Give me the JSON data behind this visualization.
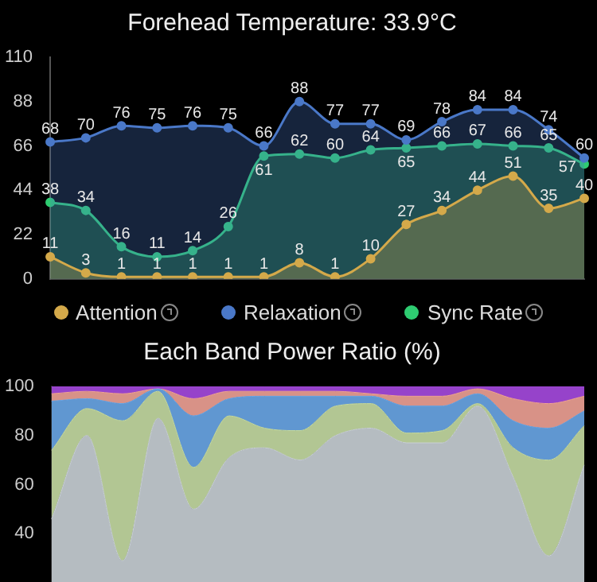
{
  "chart_data": [
    {
      "type": "area",
      "title": "Forehead Temperature: 33.9°C",
      "categories": [
        null,
        null,
        null,
        null,
        null,
        null,
        null,
        null,
        null,
        null,
        null,
        null,
        null,
        null,
        null,
        null
      ],
      "series": [
        {
          "name": "Attention",
          "color": "#d4a94a",
          "values": [
            11,
            3,
            1,
            1,
            1,
            1,
            1,
            8,
            1,
            10,
            27,
            34,
            44,
            51,
            35,
            40
          ]
        },
        {
          "name": "Relaxation",
          "color": "#4a78c8",
          "values": [
            68,
            70,
            76,
            75,
            76,
            75,
            66,
            88,
            77,
            77,
            69,
            78,
            84,
            84,
            74,
            60
          ]
        },
        {
          "name": "Sync Rate",
          "color": "#2ecc71",
          "values": [
            38,
            34,
            16,
            11,
            14,
            26,
            61,
            62,
            60,
            64,
            65,
            66,
            67,
            66,
            65,
            57
          ]
        }
      ],
      "ylim": [
        0,
        110
      ],
      "yticks": [
        0,
        22,
        44,
        66,
        88,
        110
      ],
      "tick_labels": "y",
      "marker": "circle",
      "data_labels": true,
      "legend": "bottom"
    },
    {
      "type": "area",
      "title": "Each Band Power Ratio (%)",
      "stacked": true,
      "categories": [
        null,
        null,
        null,
        null,
        null,
        null,
        null,
        null,
        null,
        null,
        null,
        null,
        null,
        null,
        null,
        null
      ],
      "series": [
        {
          "color": "#c9d0d6",
          "values": [
            46,
            80,
            29,
            87,
            50,
            71,
            75,
            70,
            80,
            83,
            77,
            77,
            92,
            63,
            31,
            68
          ]
        },
        {
          "color": "#c5dba3",
          "values": [
            28,
            11,
            57,
            11,
            17,
            17,
            8,
            12,
            12,
            10,
            4,
            5,
            1,
            12,
            39,
            16
          ]
        },
        {
          "color": "#6aa7e8",
          "values": [
            20,
            4,
            7,
            1,
            21,
            7,
            13,
            14,
            4,
            3,
            11,
            10,
            4,
            11,
            13,
            6
          ]
        },
        {
          "color": "#f0a296",
          "values": [
            3,
            3,
            4,
            0,
            7,
            3,
            2,
            2,
            2,
            1,
            4,
            4,
            2,
            9,
            10,
            6
          ]
        },
        {
          "color": "#a64ae0",
          "values": [
            3,
            2,
            3,
            1,
            5,
            2,
            2,
            2,
            2,
            3,
            4,
            4,
            1,
            5,
            7,
            4
          ]
        }
      ],
      "ylim": [
        0,
        100
      ],
      "yticks": [
        40,
        60,
        80,
        100
      ],
      "tick_labels": "y",
      "marker": "none"
    }
  ]
}
